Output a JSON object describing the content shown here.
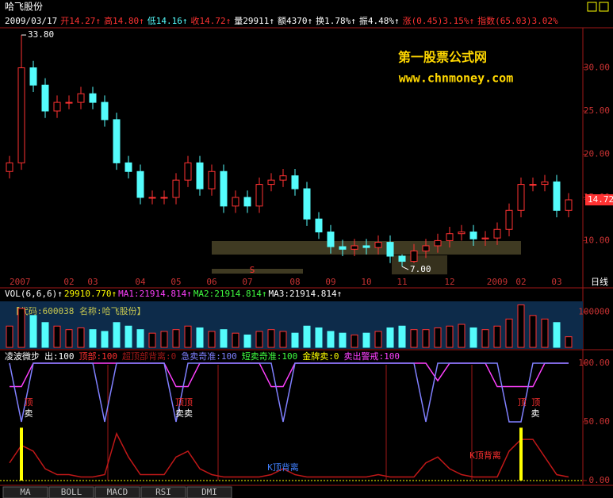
{
  "header": {
    "title": "哈飞股份"
  },
  "info_bar": [
    "2009/03/17",
    "开14.27↑",
    "高14.80↑",
    "低14.16↑",
    "收14.72↑",
    "量29911↑",
    "额4370↑",
    "换1.78%↑",
    "振4.48%↑",
    "涨(0.45)3.15%↑",
    "指数(65.03)3.02%"
  ],
  "watermark": {
    "name": "第一股票公式网",
    "url": "www.chnmoney.com"
  },
  "period_label": "日线",
  "tabs": [
    "MA",
    "BOLL",
    "MACD",
    "RSI",
    "DMI"
  ],
  "chart_data": [
    {
      "type": "candlestick",
      "up_color": "#ff3232",
      "down_color": "#54fcfc",
      "categories": [
        "2007",
        null,
        null,
        null,
        null,
        "02",
        null,
        "03",
        null,
        null,
        null,
        "04",
        null,
        null,
        "05",
        null,
        null,
        "06",
        null,
        null,
        "07",
        null,
        null,
        null,
        "08",
        null,
        null,
        "09",
        null,
        null,
        "10",
        null,
        null,
        "11",
        null,
        null,
        null,
        "12",
        null,
        null,
        null,
        "2009",
        null,
        "02",
        null,
        null,
        "03",
        null
      ],
      "open": [
        18,
        19,
        30,
        28,
        25,
        26,
        26,
        27,
        26,
        24,
        19,
        18,
        15,
        15,
        15,
        17,
        19,
        16,
        18,
        14,
        15,
        14,
        16.5,
        17,
        17.5,
        16,
        12.5,
        11,
        9.3,
        9,
        9.4,
        9.2,
        9.8,
        8.2,
        7.6,
        8.8,
        9.4,
        10,
        10.8,
        11,
        10.2,
        10.3,
        11.3,
        13.5,
        16.5,
        16.5,
        16.8,
        13.5
      ],
      "high": [
        19.8,
        33.8,
        30.8,
        28.8,
        26.8,
        26.8,
        27.8,
        27.8,
        26.8,
        24.8,
        19.8,
        18.8,
        15.8,
        15.8,
        17.8,
        19.8,
        19.8,
        18.8,
        18.8,
        15.8,
        15.8,
        17.3,
        17.8,
        18.3,
        18.3,
        16.8,
        13.3,
        11.8,
        10.1,
        10.2,
        10.2,
        10.6,
        10.6,
        8.4,
        9.6,
        10.2,
        10.8,
        11.6,
        11.8,
        11.8,
        11.1,
        12.1,
        14.3,
        17.3,
        17.3,
        17.6,
        17.6,
        15.5
      ],
      "low": [
        17.2,
        18.2,
        27.2,
        24.2,
        24.2,
        25.2,
        25.2,
        25.2,
        23.2,
        18.2,
        17.2,
        14.2,
        14.2,
        14.2,
        14.2,
        16.2,
        15.2,
        15.2,
        13.2,
        13.2,
        13.2,
        13.2,
        15.7,
        16.2,
        15.2,
        11.7,
        10.2,
        8.5,
        8.2,
        8.2,
        8.4,
        8.4,
        7.4,
        7.0,
        7.4,
        8.0,
        8.6,
        9.2,
        10.0,
        9.4,
        9.4,
        9.5,
        10.5,
        12.7,
        15.7,
        15.7,
        12.7,
        12.7
      ],
      "close": [
        19,
        30,
        28,
        25,
        26,
        26,
        27,
        26,
        24,
        19,
        18,
        15,
        15,
        15,
        17,
        19,
        16,
        18,
        14,
        15,
        14,
        16.5,
        17,
        17.5,
        16,
        12.5,
        11,
        9.3,
        9,
        9.4,
        9.2,
        9.8,
        8.2,
        7.6,
        8.8,
        9.4,
        10,
        10.8,
        11,
        10.2,
        10.3,
        11.3,
        13.5,
        16.5,
        16.5,
        16.8,
        13.5,
        14.72
      ],
      "high_label": "33.80",
      "low_label": "7.00",
      "last_label": "14.72",
      "ylim": [
        6,
        34.36
      ],
      "yticks": [
        {
          "value": 10,
          "label": "10.00"
        },
        {
          "value": 15,
          "label": "15.00"
        },
        {
          "value": 20,
          "label": "20.00"
        },
        {
          "value": 25,
          "label": "25.00"
        },
        {
          "value": 30,
          "label": "30.00"
        }
      ]
    },
    {
      "type": "bar",
      "legend": [
        "VOL(6,6,6)↑",
        "29910.770↑",
        "MA1:21914.814↑",
        "MA2:21914.814↑",
        "MA3:21914.814↑"
      ],
      "legend_colors": [
        "#ffffff",
        "#ffff00",
        "#ff40ff",
        "#40ff40",
        "#ffffff"
      ],
      "caption": "【代码:600038 名称:哈飞股份】",
      "values": [
        60000,
        110000,
        90000,
        70000,
        60000,
        50000,
        55000,
        50000,
        45000,
        70000,
        60000,
        50000,
        40000,
        45000,
        50000,
        60000,
        55000,
        45000,
        50000,
        40000,
        35000,
        45000,
        50000,
        45000,
        40000,
        60000,
        55000,
        45000,
        40000,
        35000,
        40000,
        45000,
        55000,
        60000,
        50000,
        50000,
        55000,
        60000,
        65000,
        55000,
        50000,
        60000,
        80000,
        120000,
        90000,
        80000,
        70000,
        29910.77
      ],
      "ylim": [
        0,
        130000
      ],
      "yticks": [
        100000
      ]
    },
    {
      "type": "line",
      "legend": [
        "凌波微步",
        "出:100",
        "顶部:100",
        "超顶部背离:0",
        "急卖奇准:100",
        "短卖奇准:100",
        "金牌卖:0",
        "卖出警戒:100"
      ],
      "legend_colors": [
        "#ffffff",
        "#ffffff",
        "#ff3030",
        "#a01818",
        "#8080ff",
        "#40ff40",
        "#ffff00",
        "#ff40ff"
      ],
      "series": [
        {
          "kind": "line",
          "color": "#ff40ff",
          "values": [
            80,
            80,
            100,
            100,
            100,
            100,
            100,
            100,
            100,
            100,
            100,
            100,
            100,
            100,
            80,
            80,
            100,
            100,
            100,
            100,
            100,
            100,
            80,
            80,
            100,
            100,
            100,
            100,
            100,
            100,
            100,
            100,
            100,
            100,
            100,
            100,
            85,
            100,
            100,
            100,
            100,
            80,
            80,
            80,
            80,
            100,
            100,
            100
          ]
        },
        {
          "kind": "line",
          "color": "#8080ff",
          "values": [
            100,
            50,
            100,
            100,
            100,
            100,
            100,
            100,
            50,
            100,
            100,
            100,
            100,
            100,
            50,
            100,
            100,
            100,
            100,
            100,
            100,
            100,
            100,
            50,
            100,
            100,
            100,
            100,
            100,
            100,
            100,
            100,
            100,
            100,
            100,
            50,
            100,
            100,
            100,
            100,
            100,
            100,
            50,
            50,
            100,
            100,
            100,
            100
          ]
        },
        {
          "kind": "line",
          "color": "#c01818",
          "values": [
            15,
            30,
            25,
            10,
            5,
            5,
            3,
            3,
            5,
            40,
            20,
            5,
            5,
            5,
            20,
            25,
            10,
            5,
            3,
            3,
            3,
            3,
            5,
            10,
            5,
            3,
            3,
            3,
            3,
            3,
            3,
            5,
            3,
            3,
            3,
            15,
            20,
            10,
            5,
            3,
            3,
            3,
            25,
            35,
            35,
            20,
            5,
            3
          ]
        },
        {
          "kind": "bar",
          "color": "#ffff00",
          "values": [
            0,
            45,
            0,
            0,
            0,
            0,
            0,
            0,
            0,
            0,
            0,
            0,
            0,
            0,
            0,
            0,
            0,
            0,
            0,
            0,
            0,
            0,
            0,
            0,
            0,
            0,
            0,
            0,
            0,
            0,
            0,
            0,
            0,
            0,
            0,
            0,
            0,
            0,
            0,
            0,
            0,
            0,
            0,
            45,
            0,
            0,
            0,
            0
          ]
        }
      ],
      "annotations": [
        "顶",
        "卖",
        "顶顶",
        "卖卖",
        "顶 顶",
        "卖",
        "K顶背离",
        "K顶背离"
      ],
      "ylim": [
        -1.4,
        102
      ],
      "yticks": [
        {
          "value": 0,
          "label": "0.00"
        },
        {
          "value": 50,
          "label": "50.00"
        },
        {
          "value": 100,
          "label": "100.00"
        }
      ]
    }
  ]
}
